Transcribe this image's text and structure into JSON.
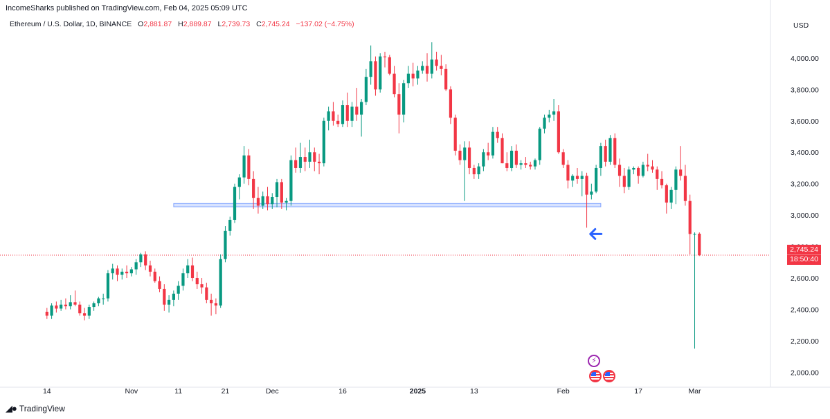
{
  "header": {
    "published": "IncomeSharks published on TradingView.com, Feb 04, 2025 05:09 UTC",
    "symbol": "Ethereum / U.S. Dollar, 1D, BINANCE",
    "open_label": "O",
    "open_value": "2,881.87",
    "high_label": "H",
    "high_value": "2,889.87",
    "low_label": "L",
    "low_value": "2,739.73",
    "close_label": "C",
    "close_value": "2,745.24",
    "change": "−137.02 (−4.75%)",
    "currency": "USD"
  },
  "price_tag": {
    "price": "2,745.24",
    "countdown": "18:50:40"
  },
  "footer": {
    "brand": "TradingView",
    "logo_icon": "tradingview-logo-icon"
  },
  "colors": {
    "up": "#089981",
    "down": "#f23645",
    "support": "#2962ff",
    "arrow": "#2962ff",
    "event_purple": "#9c27b0"
  },
  "chart_data": {
    "type": "candlestick",
    "y_axis": {
      "ticks": [
        2000,
        2200,
        2400,
        2600,
        2800,
        3000,
        3200,
        3400,
        3600,
        3800,
        4000
      ],
      "tick_labels": [
        "2,000.00",
        "2,200.00",
        "2,400.00",
        "2,600.00",
        "2,800.00",
        "3,000.00",
        "3,200.00",
        "3,400.00",
        "3,600.00",
        "3,800.00",
        "4,000.00"
      ],
      "range": [
        1940,
        4180
      ]
    },
    "x_axis": {
      "tick_labels": [
        {
          "label": "14",
          "day": 0
        },
        {
          "label": "Nov",
          "day": 18
        },
        {
          "label": "11",
          "day": 28
        },
        {
          "label": "21",
          "day": 38
        },
        {
          "label": "Dec",
          "day": 48
        },
        {
          "label": "16",
          "day": 63
        },
        {
          "label": "2025",
          "day": 79,
          "bold": true
        },
        {
          "label": "13",
          "day": 91
        },
        {
          "label": "Feb",
          "day": 110
        },
        {
          "label": "17",
          "day": 126
        },
        {
          "label": "Mar",
          "day": 138
        }
      ],
      "range": [
        -10,
        154
      ]
    },
    "support_zone": {
      "from_day": 27,
      "to_day": 118,
      "low": 3053,
      "high": 3074
    },
    "last_price_line": 2745.24,
    "arrow_annotation": {
      "day": 114,
      "price": 2880,
      "direction": "left"
    },
    "events": [
      {
        "type": "bolt",
        "day": 112,
        "icon": "lightning-event-icon"
      },
      {
        "type": "flag",
        "day": 112,
        "icon": "us-flag-event-icon"
      },
      {
        "type": "flag",
        "day": 114,
        "icon": "us-flag-event-icon"
      }
    ],
    "candles": [
      [
        2385,
        2410,
        2340,
        2360
      ],
      [
        2360,
        2440,
        2340,
        2425
      ],
      [
        2425,
        2450,
        2380,
        2405
      ],
      [
        2405,
        2460,
        2390,
        2430
      ],
      [
        2430,
        2470,
        2400,
        2420
      ],
      [
        2420,
        2490,
        2400,
        2445
      ],
      [
        2445,
        2520,
        2420,
        2430
      ],
      [
        2430,
        2450,
        2360,
        2375
      ],
      [
        2375,
        2410,
        2330,
        2360
      ],
      [
        2360,
        2430,
        2340,
        2415
      ],
      [
        2415,
        2450,
        2390,
        2440
      ],
      [
        2440,
        2480,
        2420,
        2470
      ],
      [
        2470,
        2500,
        2430,
        2470
      ],
      [
        2470,
        2650,
        2450,
        2630
      ],
      [
        2630,
        2690,
        2590,
        2660
      ],
      [
        2660,
        2680,
        2580,
        2620
      ],
      [
        2620,
        2660,
        2590,
        2640
      ],
      [
        2640,
        2680,
        2600,
        2630
      ],
      [
        2630,
        2670,
        2610,
        2655
      ],
      [
        2655,
        2720,
        2620,
        2700
      ],
      [
        2700,
        2760,
        2670,
        2750
      ],
      [
        2750,
        2770,
        2650,
        2680
      ],
      [
        2680,
        2710,
        2610,
        2640
      ],
      [
        2640,
        2660,
        2570,
        2580
      ],
      [
        2580,
        2610,
        2510,
        2530
      ],
      [
        2530,
        2560,
        2390,
        2430
      ],
      [
        2430,
        2490,
        2380,
        2460
      ],
      [
        2460,
        2520,
        2420,
        2500
      ],
      [
        2500,
        2580,
        2460,
        2550
      ],
      [
        2550,
        2660,
        2520,
        2630
      ],
      [
        2630,
        2720,
        2600,
        2680
      ],
      [
        2680,
        2730,
        2580,
        2600
      ],
      [
        2600,
        2640,
        2530,
        2560
      ],
      [
        2560,
        2600,
        2500,
        2540
      ],
      [
        2540,
        2570,
        2440,
        2460
      ],
      [
        2460,
        2500,
        2360,
        2440
      ],
      [
        2440,
        2470,
        2370,
        2425
      ],
      [
        2425,
        2750,
        2410,
        2720
      ],
      [
        2720,
        2930,
        2700,
        2900
      ],
      [
        2900,
        2990,
        2870,
        2970
      ],
      [
        2970,
        3200,
        2950,
        3180
      ],
      [
        3180,
        3260,
        3100,
        3240
      ],
      [
        3240,
        3440,
        3200,
        3380
      ],
      [
        3380,
        3420,
        3190,
        3230
      ],
      [
        3230,
        3280,
        3040,
        3110
      ],
      [
        3110,
        3180,
        3010,
        3060
      ],
      [
        3060,
        3150,
        3040,
        3120
      ],
      [
        3120,
        3180,
        3030,
        3070
      ],
      [
        3070,
        3140,
        3040,
        3115
      ],
      [
        3115,
        3230,
        3050,
        3210
      ],
      [
        3210,
        3230,
        3040,
        3080
      ],
      [
        3080,
        3110,
        3030,
        3090
      ],
      [
        3090,
        3380,
        3060,
        3350
      ],
      [
        3350,
        3430,
        3270,
        3300
      ],
      [
        3300,
        3460,
        3270,
        3370
      ],
      [
        3370,
        3430,
        3280,
        3340
      ],
      [
        3340,
        3480,
        3300,
        3400
      ],
      [
        3400,
        3430,
        3280,
        3340
      ],
      [
        3340,
        3390,
        3260,
        3330
      ],
      [
        3330,
        3620,
        3310,
        3600
      ],
      [
        3600,
        3690,
        3540,
        3660
      ],
      [
        3660,
        3720,
        3570,
        3600
      ],
      [
        3600,
        3640,
        3560,
        3580
      ],
      [
        3580,
        3730,
        3560,
        3700
      ],
      [
        3700,
        3780,
        3560,
        3600
      ],
      [
        3600,
        3720,
        3560,
        3690
      ],
      [
        3690,
        3810,
        3600,
        3640
      ],
      [
        3640,
        3740,
        3500,
        3720
      ],
      [
        3720,
        3930,
        3700,
        3880
      ],
      [
        3880,
        4080,
        3830,
        3980
      ],
      [
        3980,
        4010,
        3760,
        3800
      ],
      [
        3800,
        4030,
        3780,
        4010
      ],
      [
        4010,
        4040,
        3940,
        4005
      ],
      [
        4005,
        4020,
        3890,
        3900
      ],
      [
        3900,
        3950,
        3750,
        3770
      ],
      [
        3770,
        3840,
        3520,
        3640
      ],
      [
        3640,
        3860,
        3590,
        3840
      ],
      [
        3840,
        3950,
        3810,
        3900
      ],
      [
        3900,
        3970,
        3820,
        3870
      ],
      [
        3870,
        3950,
        3830,
        3920
      ],
      [
        3920,
        3980,
        3900,
        3950
      ],
      [
        3950,
        4030,
        3850,
        3900
      ],
      [
        3900,
        4100,
        3870,
        3990
      ],
      [
        3990,
        4040,
        3920,
        3950
      ],
      [
        3950,
        4020,
        3890,
        3930
      ],
      [
        3930,
        3960,
        3790,
        3800
      ],
      [
        3800,
        3820,
        3580,
        3620
      ],
      [
        3620,
        3640,
        3380,
        3410
      ],
      [
        3410,
        3450,
        3320,
        3350
      ],
      [
        3350,
        3470,
        3090,
        3430
      ],
      [
        3430,
        3470,
        3260,
        3300
      ],
      [
        3300,
        3320,
        3230,
        3260
      ],
      [
        3260,
        3330,
        3230,
        3310
      ],
      [
        3310,
        3420,
        3280,
        3400
      ],
      [
        3400,
        3460,
        3350,
        3380
      ],
      [
        3380,
        3560,
        3360,
        3530
      ],
      [
        3530,
        3560,
        3460,
        3490
      ],
      [
        3490,
        3520,
        3330,
        3330
      ],
      [
        3330,
        3400,
        3280,
        3300
      ],
      [
        3300,
        3440,
        3280,
        3410
      ],
      [
        3410,
        3450,
        3300,
        3320
      ],
      [
        3320,
        3350,
        3290,
        3330
      ],
      [
        3330,
        3370,
        3300,
        3320
      ],
      [
        3320,
        3340,
        3290,
        3310
      ],
      [
        3310,
        3360,
        3290,
        3350
      ],
      [
        3350,
        3560,
        3320,
        3550
      ],
      [
        3550,
        3640,
        3520,
        3620
      ],
      [
        3620,
        3670,
        3590,
        3640
      ],
      [
        3640,
        3740,
        3600,
        3660
      ],
      [
        3660,
        3700,
        3390,
        3400
      ],
      [
        3400,
        3420,
        3300,
        3320
      ],
      [
        3320,
        3350,
        3170,
        3220
      ],
      [
        3220,
        3260,
        3180,
        3250
      ],
      [
        3250,
        3300,
        3200,
        3230
      ],
      [
        3230,
        3280,
        3120,
        3250
      ],
      [
        3250,
        3270,
        2920,
        3130
      ],
      [
        3130,
        3200,
        3100,
        3150
      ],
      [
        3150,
        3320,
        3140,
        3300
      ],
      [
        3300,
        3460,
        3250,
        3440
      ],
      [
        3440,
        3480,
        3310,
        3340
      ],
      [
        3340,
        3510,
        3320,
        3490
      ],
      [
        3490,
        3520,
        3300,
        3320
      ],
      [
        3320,
        3360,
        3180,
        3250
      ],
      [
        3250,
        3300,
        3140,
        3180
      ],
      [
        3180,
        3310,
        3160,
        3290
      ],
      [
        3290,
        3310,
        3260,
        3300
      ],
      [
        3300,
        3310,
        3200,
        3250
      ],
      [
        3250,
        3340,
        3240,
        3320
      ],
      [
        3320,
        3390,
        3280,
        3310
      ],
      [
        3310,
        3350,
        3270,
        3290
      ],
      [
        3290,
        3310,
        3160,
        3230
      ],
      [
        3230,
        3280,
        3170,
        3190
      ],
      [
        3190,
        3200,
        3010,
        3080
      ],
      [
        3080,
        3180,
        3040,
        3160
      ],
      [
        3160,
        3310,
        3070,
        3290
      ],
      [
        3290,
        3440,
        3220,
        3250
      ],
      [
        3250,
        3320,
        3060,
        3090
      ],
      [
        3090,
        3130,
        2750,
        2880
      ],
      [
        2880,
        2890,
        2150,
        2880
      ],
      [
        2881.87,
        2889.87,
        2739.73,
        2745.24
      ]
    ]
  }
}
